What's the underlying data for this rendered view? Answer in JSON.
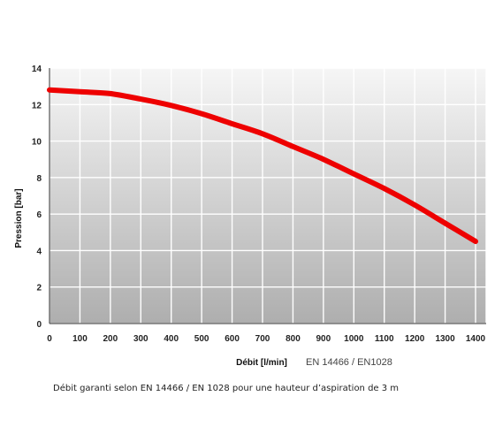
{
  "chart_data": {
    "type": "line",
    "xlabel": "Débit [l/min]",
    "ylabel": "Pression [bar]",
    "xlim": [
      0,
      1400
    ],
    "ylim": [
      0,
      14
    ],
    "xticks": [
      0,
      100,
      200,
      300,
      400,
      500,
      600,
      700,
      800,
      900,
      1000,
      1100,
      1200,
      1300,
      1400
    ],
    "yticks": [
      0,
      2,
      4,
      6,
      8,
      10,
      12,
      14
    ],
    "grid": true,
    "standard_label": "EN 14466 / EN1028",
    "line_color": "#ee0000",
    "series": [
      {
        "x": [
          0,
          100,
          200,
          300,
          400,
          500,
          600,
          700,
          800,
          900,
          1000,
          1100,
          1200,
          1300,
          1400
        ],
        "y": [
          12.8,
          12.7,
          12.6,
          12.3,
          11.95,
          11.5,
          10.95,
          10.4,
          9.7,
          9.0,
          8.2,
          7.4,
          6.5,
          5.5,
          4.5
        ]
      }
    ]
  },
  "caption": "Débit garanti selon EN 14466 / EN 1028 pour une hauteur d’aspiration de 3 m"
}
